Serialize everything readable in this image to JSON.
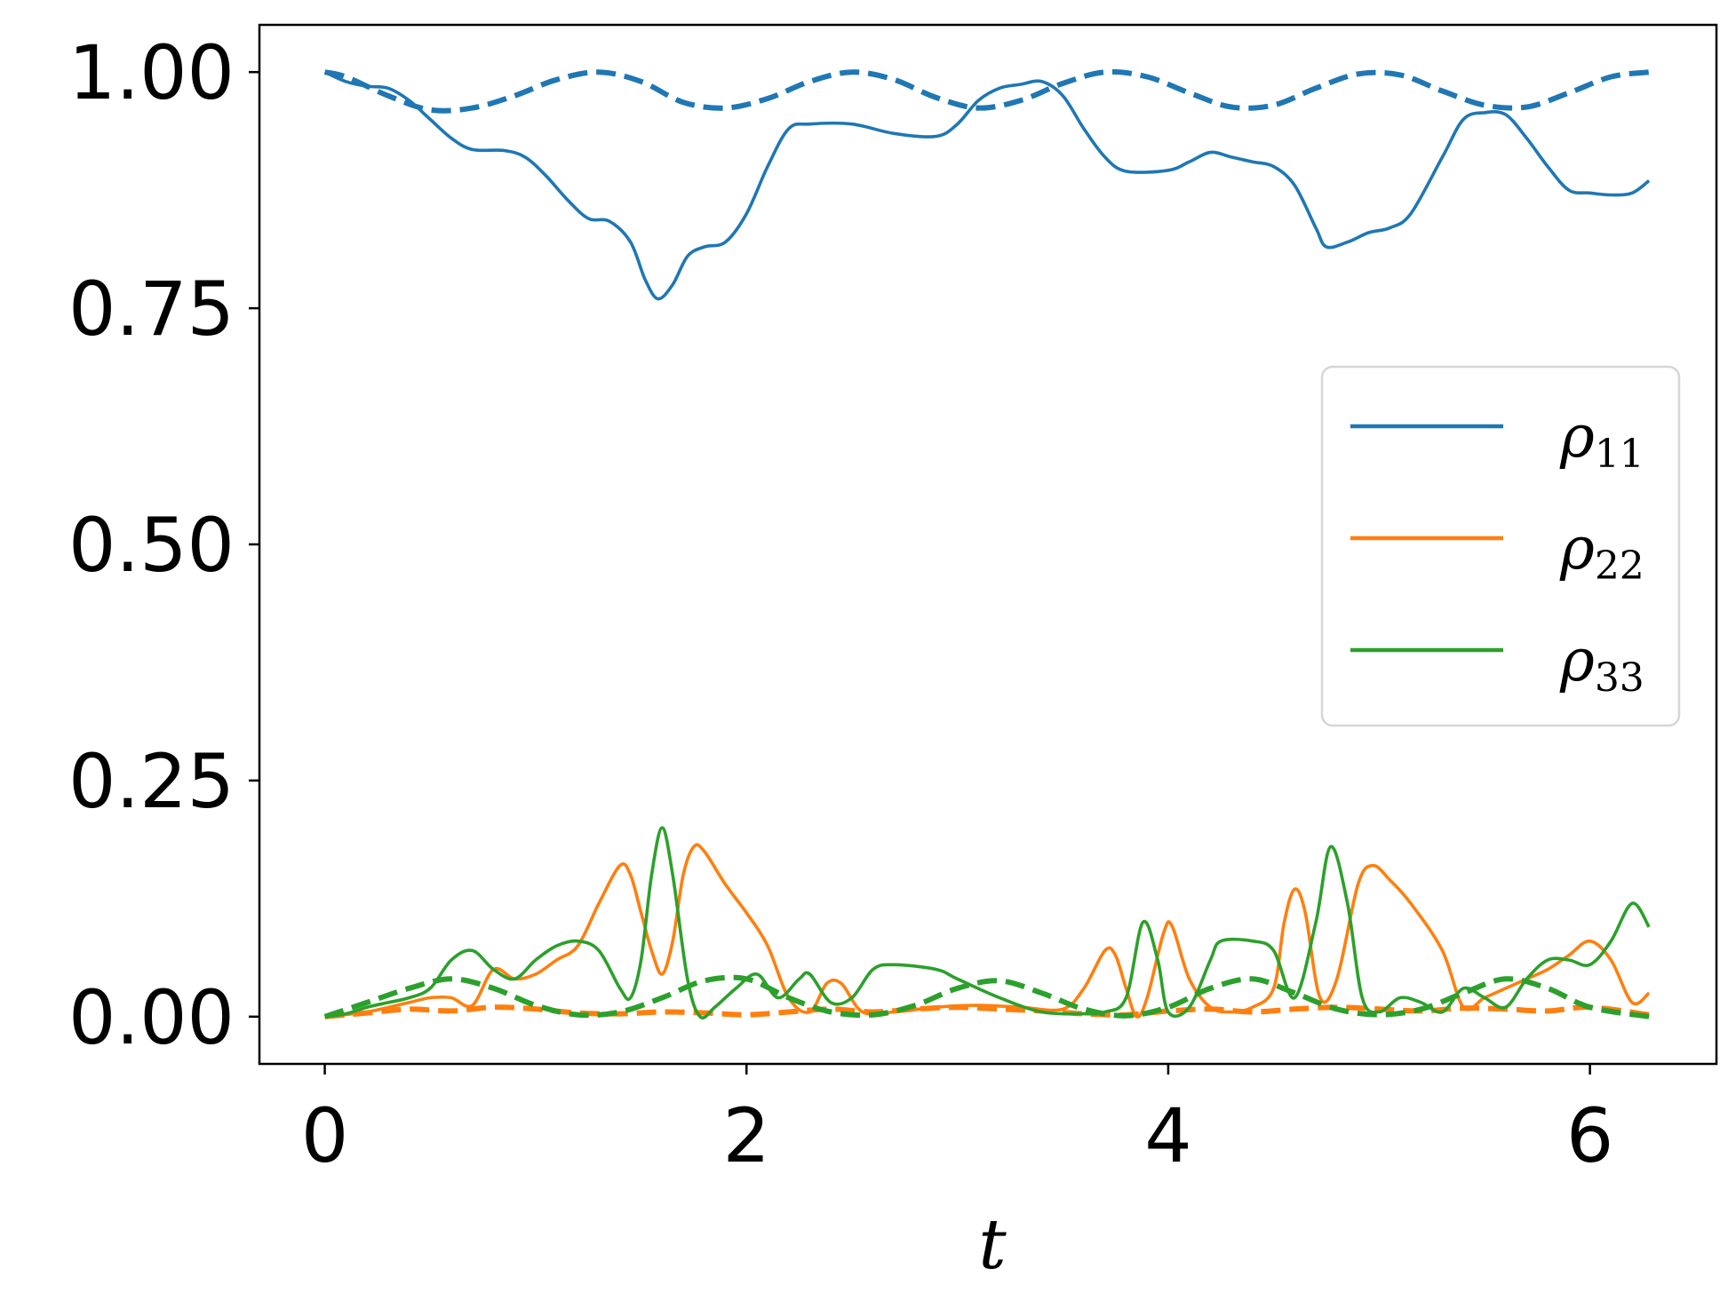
{
  "chart_data": {
    "type": "line",
    "title": "",
    "xlabel": "t",
    "ylabel": "",
    "xlim": [
      -0.31,
      6.6
    ],
    "ylim": [
      -0.05,
      1.05
    ],
    "xticks": [
      {
        "value": 0,
        "label": "0"
      },
      {
        "value": 2,
        "label": "2"
      },
      {
        "value": 4,
        "label": "4"
      },
      {
        "value": 6,
        "label": "6"
      }
    ],
    "yticks": [
      {
        "value": 0.0,
        "label": "0.00"
      },
      {
        "value": 0.25,
        "label": "0.25"
      },
      {
        "value": 0.5,
        "label": "0.50"
      },
      {
        "value": 0.75,
        "label": "0.75"
      },
      {
        "value": 1.0,
        "label": "1.00"
      }
    ],
    "grid": false,
    "legend": {
      "placement": "center-right",
      "entries": [
        {
          "symbol": "ρ",
          "subscript": "11",
          "color": "#1f77b4"
        },
        {
          "symbol": "ρ",
          "subscript": "22",
          "color": "#ff7f0e"
        },
        {
          "symbol": "ρ",
          "subscript": "33",
          "color": "#2ca02c"
        }
      ]
    },
    "series": [
      {
        "id": "rho11-solid",
        "color": "#1f77b4",
        "style": "solid",
        "points": [
          [
            0,
            1.0
          ],
          [
            0.1,
            0.99
          ],
          [
            0.2,
            0.985
          ],
          [
            0.3,
            0.983
          ],
          [
            0.4,
            0.97
          ],
          [
            0.5,
            0.95
          ],
          [
            0.6,
            0.93
          ],
          [
            0.7,
            0.918
          ],
          [
            0.85,
            0.917
          ],
          [
            0.95,
            0.91
          ],
          [
            1.05,
            0.89
          ],
          [
            1.15,
            0.865
          ],
          [
            1.25,
            0.845
          ],
          [
            1.35,
            0.842
          ],
          [
            1.45,
            0.82
          ],
          [
            1.52,
            0.78
          ],
          [
            1.58,
            0.76
          ],
          [
            1.65,
            0.775
          ],
          [
            1.72,
            0.805
          ],
          [
            1.8,
            0.815
          ],
          [
            1.9,
            0.82
          ],
          [
            2.0,
            0.85
          ],
          [
            2.1,
            0.9
          ],
          [
            2.2,
            0.94
          ],
          [
            2.3,
            0.945
          ],
          [
            2.5,
            0.945
          ],
          [
            2.7,
            0.935
          ],
          [
            2.9,
            0.932
          ],
          [
            3.0,
            0.945
          ],
          [
            3.1,
            0.97
          ],
          [
            3.2,
            0.983
          ],
          [
            3.3,
            0.987
          ],
          [
            3.4,
            0.99
          ],
          [
            3.5,
            0.975
          ],
          [
            3.6,
            0.94
          ],
          [
            3.7,
            0.91
          ],
          [
            3.8,
            0.895
          ],
          [
            4.0,
            0.896
          ],
          [
            4.1,
            0.905
          ],
          [
            4.2,
            0.915
          ],
          [
            4.3,
            0.91
          ],
          [
            4.4,
            0.905
          ],
          [
            4.5,
            0.9
          ],
          [
            4.6,
            0.88
          ],
          [
            4.7,
            0.835
          ],
          [
            4.75,
            0.815
          ],
          [
            4.85,
            0.82
          ],
          [
            4.95,
            0.83
          ],
          [
            5.05,
            0.835
          ],
          [
            5.15,
            0.85
          ],
          [
            5.3,
            0.91
          ],
          [
            5.4,
            0.95
          ],
          [
            5.5,
            0.957
          ],
          [
            5.6,
            0.955
          ],
          [
            5.7,
            0.93
          ],
          [
            5.8,
            0.9
          ],
          [
            5.9,
            0.875
          ],
          [
            6.0,
            0.872
          ],
          [
            6.1,
            0.87
          ],
          [
            6.2,
            0.872
          ],
          [
            6.28,
            0.885
          ]
        ]
      },
      {
        "id": "rho11-dashed",
        "color": "#1f77b4",
        "style": "dashed",
        "points": [
          [
            0,
            1.0
          ],
          [
            0.1,
            0.995
          ],
          [
            0.3,
            0.975
          ],
          [
            0.5,
            0.96
          ],
          [
            0.7,
            0.962
          ],
          [
            0.9,
            0.975
          ],
          [
            1.1,
            0.992
          ],
          [
            1.3,
            1.0
          ],
          [
            1.5,
            0.99
          ],
          [
            1.7,
            0.968
          ],
          [
            1.9,
            0.962
          ],
          [
            2.1,
            0.972
          ],
          [
            2.3,
            0.99
          ],
          [
            2.5,
            1.0
          ],
          [
            2.7,
            0.992
          ],
          [
            2.9,
            0.973
          ],
          [
            3.1,
            0.962
          ],
          [
            3.3,
            0.97
          ],
          [
            3.5,
            0.988
          ],
          [
            3.7,
            1.0
          ],
          [
            3.9,
            0.995
          ],
          [
            4.1,
            0.978
          ],
          [
            4.3,
            0.963
          ],
          [
            4.5,
            0.965
          ],
          [
            4.7,
            0.983
          ],
          [
            4.9,
            0.998
          ],
          [
            5.1,
            0.997
          ],
          [
            5.3,
            0.98
          ],
          [
            5.5,
            0.965
          ],
          [
            5.7,
            0.963
          ],
          [
            5.9,
            0.978
          ],
          [
            6.1,
            0.995
          ],
          [
            6.28,
            1.0
          ]
        ]
      },
      {
        "id": "rho22-solid",
        "color": "#ff7f0e",
        "style": "solid",
        "points": [
          [
            0,
            0.0
          ],
          [
            0.2,
            0.005
          ],
          [
            0.4,
            0.015
          ],
          [
            0.5,
            0.02
          ],
          [
            0.6,
            0.02
          ],
          [
            0.7,
            0.012
          ],
          [
            0.8,
            0.05
          ],
          [
            0.9,
            0.04
          ],
          [
            1.0,
            0.045
          ],
          [
            1.1,
            0.06
          ],
          [
            1.2,
            0.075
          ],
          [
            1.3,
            0.12
          ],
          [
            1.4,
            0.16
          ],
          [
            1.45,
            0.15
          ],
          [
            1.5,
            0.11
          ],
          [
            1.55,
            0.07
          ],
          [
            1.6,
            0.045
          ],
          [
            1.65,
            0.08
          ],
          [
            1.7,
            0.15
          ],
          [
            1.75,
            0.18
          ],
          [
            1.8,
            0.175
          ],
          [
            1.9,
            0.14
          ],
          [
            2.0,
            0.11
          ],
          [
            2.1,
            0.075
          ],
          [
            2.2,
            0.02
          ],
          [
            2.3,
            0.005
          ],
          [
            2.38,
            0.035
          ],
          [
            2.45,
            0.035
          ],
          [
            2.55,
            0.005
          ],
          [
            2.7,
            0.005
          ],
          [
            2.9,
            0.01
          ],
          [
            3.1,
            0.012
          ],
          [
            3.3,
            0.01
          ],
          [
            3.5,
            0.008
          ],
          [
            3.6,
            0.03
          ],
          [
            3.7,
            0.07
          ],
          [
            3.75,
            0.065
          ],
          [
            3.8,
            0.03
          ],
          [
            3.85,
            0.0
          ],
          [
            3.9,
            0.02
          ],
          [
            3.98,
            0.09
          ],
          [
            4.02,
            0.095
          ],
          [
            4.1,
            0.04
          ],
          [
            4.2,
            0.01
          ],
          [
            4.3,
            0.005
          ],
          [
            4.4,
            0.01
          ],
          [
            4.5,
            0.03
          ],
          [
            4.55,
            0.1
          ],
          [
            4.6,
            0.135
          ],
          [
            4.65,
            0.11
          ],
          [
            4.72,
            0.02
          ],
          [
            4.8,
            0.04
          ],
          [
            4.9,
            0.14
          ],
          [
            4.97,
            0.16
          ],
          [
            5.05,
            0.145
          ],
          [
            5.15,
            0.12
          ],
          [
            5.3,
            0.07
          ],
          [
            5.4,
            0.01
          ],
          [
            5.5,
            0.02
          ],
          [
            5.6,
            0.03
          ],
          [
            5.7,
            0.04
          ],
          [
            5.8,
            0.05
          ],
          [
            5.9,
            0.065
          ],
          [
            6.0,
            0.08
          ],
          [
            6.1,
            0.06
          ],
          [
            6.2,
            0.015
          ],
          [
            6.28,
            0.025
          ]
        ]
      },
      {
        "id": "rho22-dashed",
        "color": "#ff7f0e",
        "style": "dashed",
        "points": [
          [
            0,
            0.0
          ],
          [
            0.2,
            0.004
          ],
          [
            0.4,
            0.008
          ],
          [
            0.6,
            0.006
          ],
          [
            0.8,
            0.01
          ],
          [
            1.0,
            0.008
          ],
          [
            1.2,
            0.004
          ],
          [
            1.4,
            0.003
          ],
          [
            1.6,
            0.005
          ],
          [
            1.8,
            0.004
          ],
          [
            2.0,
            0.002
          ],
          [
            2.2,
            0.005
          ],
          [
            2.4,
            0.008
          ],
          [
            2.6,
            0.005
          ],
          [
            2.8,
            0.008
          ],
          [
            3.0,
            0.01
          ],
          [
            3.2,
            0.008
          ],
          [
            3.4,
            0.006
          ],
          [
            3.6,
            0.003
          ],
          [
            3.8,
            0.002
          ],
          [
            4.0,
            0.006
          ],
          [
            4.2,
            0.008
          ],
          [
            4.4,
            0.005
          ],
          [
            4.6,
            0.008
          ],
          [
            4.8,
            0.01
          ],
          [
            5.0,
            0.008
          ],
          [
            5.2,
            0.006
          ],
          [
            5.4,
            0.009
          ],
          [
            5.6,
            0.008
          ],
          [
            5.8,
            0.006
          ],
          [
            6.0,
            0.01
          ],
          [
            6.28,
            0.002
          ]
        ]
      },
      {
        "id": "rho33-solid",
        "color": "#2ca02c",
        "style": "solid",
        "points": [
          [
            0,
            0.0
          ],
          [
            0.1,
            0.003
          ],
          [
            0.2,
            0.01
          ],
          [
            0.3,
            0.015
          ],
          [
            0.4,
            0.02
          ],
          [
            0.5,
            0.03
          ],
          [
            0.6,
            0.06
          ],
          [
            0.7,
            0.07
          ],
          [
            0.8,
            0.05
          ],
          [
            0.9,
            0.04
          ],
          [
            1.0,
            0.06
          ],
          [
            1.1,
            0.075
          ],
          [
            1.2,
            0.08
          ],
          [
            1.3,
            0.07
          ],
          [
            1.4,
            0.03
          ],
          [
            1.45,
            0.02
          ],
          [
            1.5,
            0.06
          ],
          [
            1.55,
            0.15
          ],
          [
            1.6,
            0.2
          ],
          [
            1.65,
            0.15
          ],
          [
            1.72,
            0.04
          ],
          [
            1.78,
            0.0
          ],
          [
            1.85,
            0.01
          ],
          [
            1.95,
            0.03
          ],
          [
            2.05,
            0.045
          ],
          [
            2.15,
            0.02
          ],
          [
            2.25,
            0.04
          ],
          [
            2.3,
            0.045
          ],
          [
            2.4,
            0.015
          ],
          [
            2.5,
            0.02
          ],
          [
            2.6,
            0.05
          ],
          [
            2.7,
            0.055
          ],
          [
            2.9,
            0.05
          ],
          [
            3.0,
            0.04
          ],
          [
            3.2,
            0.02
          ],
          [
            3.4,
            0.005
          ],
          [
            3.6,
            0.003
          ],
          [
            3.7,
            0.005
          ],
          [
            3.8,
            0.02
          ],
          [
            3.88,
            0.1
          ],
          [
            3.95,
            0.06
          ],
          [
            4.0,
            0.005
          ],
          [
            4.1,
            0.01
          ],
          [
            4.2,
            0.06
          ],
          [
            4.25,
            0.08
          ],
          [
            4.4,
            0.08
          ],
          [
            4.5,
            0.07
          ],
          [
            4.6,
            0.02
          ],
          [
            4.7,
            0.1
          ],
          [
            4.77,
            0.18
          ],
          [
            4.85,
            0.12
          ],
          [
            4.92,
            0.02
          ],
          [
            5.0,
            0.005
          ],
          [
            5.1,
            0.02
          ],
          [
            5.2,
            0.015
          ],
          [
            5.3,
            0.005
          ],
          [
            5.4,
            0.03
          ],
          [
            5.5,
            0.02
          ],
          [
            5.6,
            0.01
          ],
          [
            5.7,
            0.04
          ],
          [
            5.8,
            0.06
          ],
          [
            5.9,
            0.06
          ],
          [
            6.0,
            0.055
          ],
          [
            6.1,
            0.08
          ],
          [
            6.2,
            0.12
          ],
          [
            6.28,
            0.095
          ]
        ]
      },
      {
        "id": "rho33-dashed",
        "color": "#2ca02c",
        "style": "dashed",
        "points": [
          [
            0,
            0.0
          ],
          [
            0.2,
            0.015
          ],
          [
            0.4,
            0.03
          ],
          [
            0.6,
            0.04
          ],
          [
            0.8,
            0.03
          ],
          [
            1.0,
            0.012
          ],
          [
            1.2,
            0.002
          ],
          [
            1.4,
            0.005
          ],
          [
            1.6,
            0.02
          ],
          [
            1.8,
            0.038
          ],
          [
            2.0,
            0.04
          ],
          [
            2.2,
            0.02
          ],
          [
            2.4,
            0.005
          ],
          [
            2.6,
            0.002
          ],
          [
            2.8,
            0.012
          ],
          [
            3.0,
            0.03
          ],
          [
            3.2,
            0.038
          ],
          [
            3.4,
            0.025
          ],
          [
            3.6,
            0.008
          ],
          [
            3.8,
            0.001
          ],
          [
            4.0,
            0.01
          ],
          [
            4.2,
            0.03
          ],
          [
            4.4,
            0.04
          ],
          [
            4.6,
            0.025
          ],
          [
            4.8,
            0.008
          ],
          [
            5.0,
            0.002
          ],
          [
            5.2,
            0.008
          ],
          [
            5.4,
            0.025
          ],
          [
            5.6,
            0.04
          ],
          [
            5.8,
            0.03
          ],
          [
            6.0,
            0.01
          ],
          [
            6.28,
            0.0
          ]
        ]
      }
    ]
  }
}
